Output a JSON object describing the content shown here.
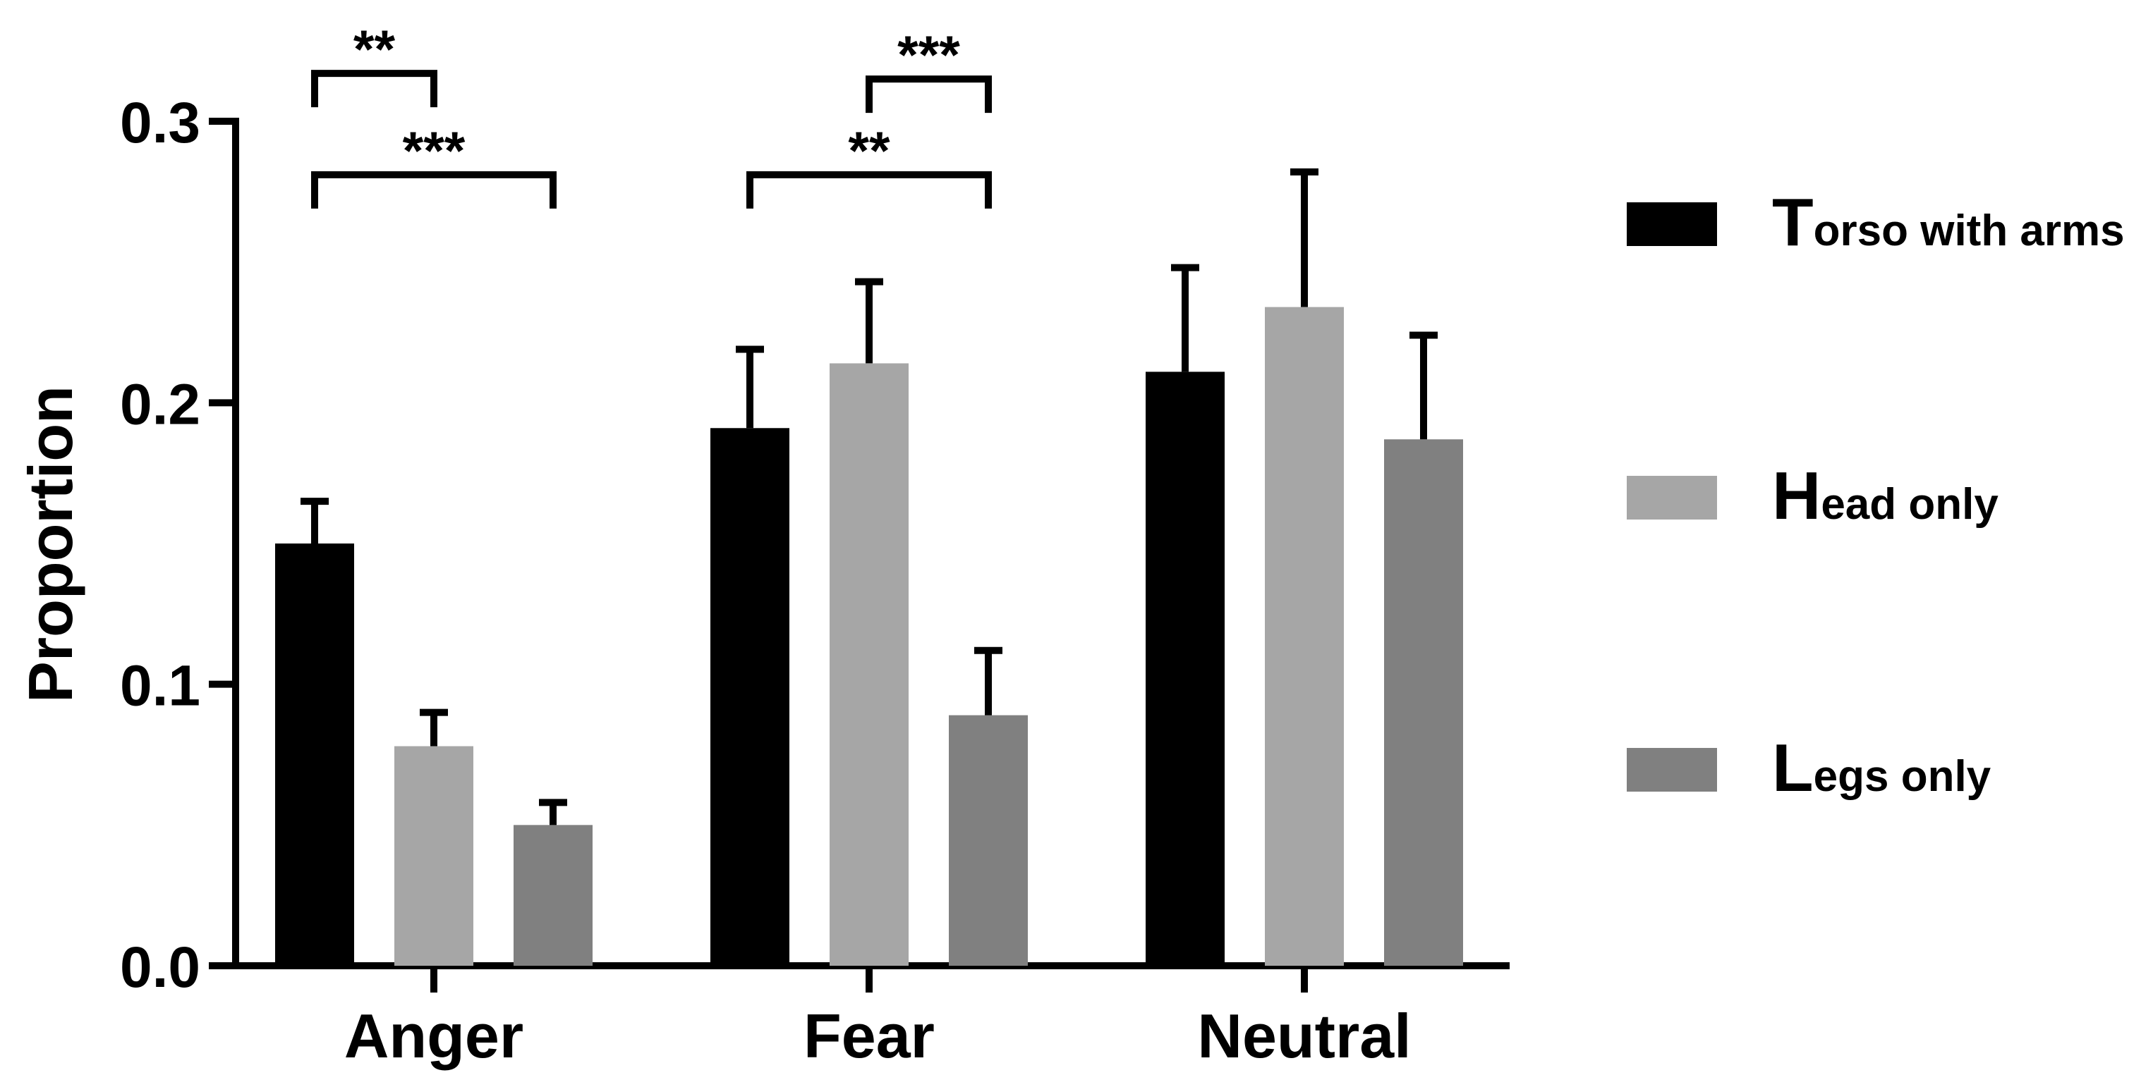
{
  "chart_data": {
    "type": "bar",
    "categories": [
      "Anger",
      "Fear",
      "Neutral"
    ],
    "series": [
      {
        "name": "Torso with arms",
        "name_initial": "T",
        "name_rest": "orso with arms",
        "color": "#000000",
        "values": [
          0.15,
          0.191,
          0.211
        ],
        "errors": [
          0.015,
          0.028,
          0.037
        ]
      },
      {
        "name": "Head only",
        "name_initial": "H",
        "name_rest": "ead only",
        "color": "#a6a6a6",
        "values": [
          0.078,
          0.214,
          0.234
        ],
        "errors": [
          0.012,
          0.029,
          0.048
        ]
      },
      {
        "name": "Legs only",
        "name_initial": "L",
        "name_rest": "egs only",
        "color": "#808080",
        "values": [
          0.05,
          0.089,
          0.187
        ],
        "errors": [
          0.008,
          0.023,
          0.037
        ]
      }
    ],
    "ylabel": "Proportion",
    "xlabel": "",
    "ylim": [
      0,
      0.3
    ],
    "yticks": [
      "0.0",
      "0.1",
      "0.2",
      "0.3"
    ],
    "ytick_values": [
      0,
      0.1,
      0.2,
      0.3
    ],
    "grid": false,
    "legend": "right",
    "significance": [
      {
        "category": 0,
        "from_series": 0,
        "to_series": 1,
        "label": "**",
        "level": 0.317
      },
      {
        "category": 0,
        "from_series": 0,
        "to_series": 2,
        "label": "***",
        "level": 0.281
      },
      {
        "category": 1,
        "from_series": 1,
        "to_series": 2,
        "label": "***",
        "level": 0.315
      },
      {
        "category": 1,
        "from_series": 0,
        "to_series": 2,
        "label": "**",
        "level": 0.281
      }
    ]
  }
}
